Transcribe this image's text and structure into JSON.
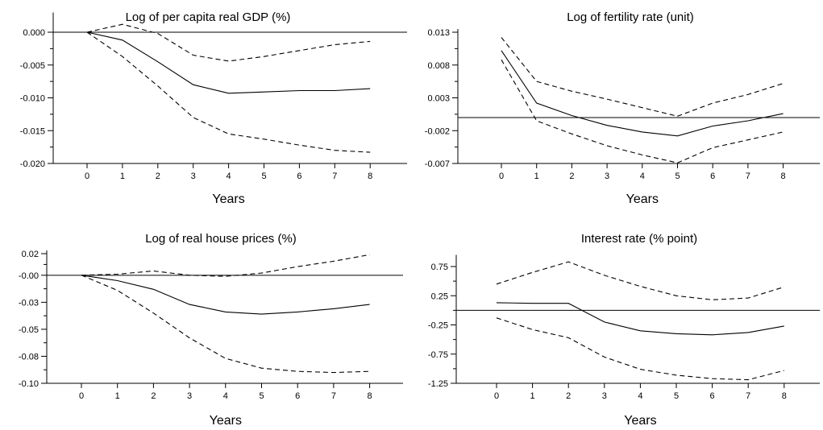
{
  "chart_data": [
    {
      "type": "line",
      "title": "Log of per capita real GDP (%)",
      "xlabel": "Years",
      "ylabel": "",
      "x": [
        0,
        1,
        2,
        3,
        4,
        5,
        6,
        7,
        8
      ],
      "ylim": [
        -0.02,
        0.003
      ],
      "yticks": [
        "0.000",
        "-0.005",
        "-0.010",
        "-0.015",
        "-0.020"
      ],
      "ytick_values": [
        0.0,
        -0.005,
        -0.01,
        -0.015,
        -0.02
      ],
      "zero_line": 0,
      "series": [
        {
          "style": "solid",
          "values": [
            0.0,
            -0.0012,
            -0.0045,
            -0.008,
            -0.0093,
            -0.0091,
            -0.0089,
            -0.0089,
            -0.0086
          ]
        },
        {
          "style": "dashed",
          "values": [
            0.0,
            0.0012,
            -0.0002,
            -0.0035,
            -0.0044,
            -0.0037,
            -0.0028,
            -0.0019,
            -0.0014
          ]
        },
        {
          "style": "dashed",
          "values": [
            0.0,
            -0.0037,
            -0.0082,
            -0.013,
            -0.0155,
            -0.0163,
            -0.0172,
            -0.018,
            -0.0183
          ]
        }
      ]
    },
    {
      "type": "line",
      "title": "Log of fertility rate (unit)",
      "xlabel": "Years",
      "ylabel": "",
      "x": [
        0,
        1,
        2,
        3,
        4,
        5,
        6,
        7,
        8
      ],
      "ylim": [
        -0.007,
        0.013
      ],
      "yticks": [
        "0.013",
        "0.008",
        "0.003",
        "-0.002",
        "-0.007"
      ],
      "ytick_values": [
        0.013,
        0.008,
        0.003,
        -0.002,
        -0.007
      ],
      "zero_line": 0,
      "series": [
        {
          "style": "solid",
          "values": [
            0.0102,
            0.0022,
            0.0003,
            -0.0012,
            -0.0022,
            -0.0028,
            -0.0013,
            -0.0005,
            0.0006
          ]
        },
        {
          "style": "dashed",
          "values": [
            0.0122,
            0.0055,
            0.004,
            0.0028,
            0.0015,
            0.0002,
            0.0022,
            0.0035,
            0.0052
          ]
        },
        {
          "style": "dashed",
          "values": [
            0.0088,
            -0.0005,
            -0.0025,
            -0.0043,
            -0.0057,
            -0.0069,
            -0.0046,
            -0.0034,
            -0.0022
          ]
        }
      ]
    },
    {
      "type": "line",
      "title": "Log of real house prices (%)",
      "xlabel": "Years",
      "ylabel": "",
      "x": [
        0,
        1,
        2,
        3,
        4,
        5,
        6,
        7,
        8
      ],
      "ylim": [
        -0.1,
        0.02
      ],
      "yticks": [
        "0.02",
        "-0.00",
        "-0.03",
        "-0.05",
        "-0.08",
        "-0.10"
      ],
      "ytick_values": [
        0.02,
        0.0,
        -0.025,
        -0.05,
        -0.075,
        -0.1
      ],
      "zero_line": 0,
      "series": [
        {
          "style": "solid",
          "values": [
            0.0,
            -0.005,
            -0.013,
            -0.027,
            -0.034,
            -0.036,
            -0.034,
            -0.031,
            -0.027
          ]
        },
        {
          "style": "dashed",
          "values": [
            0.0,
            0.001,
            0.004,
            0.0,
            -0.001,
            0.002,
            0.008,
            0.013,
            0.019
          ]
        },
        {
          "style": "dashed",
          "values": [
            0.0,
            -0.014,
            -0.035,
            -0.058,
            -0.077,
            -0.086,
            -0.089,
            -0.09,
            -0.089
          ]
        }
      ]
    },
    {
      "type": "line",
      "title": "Interest rate (% point)",
      "xlabel": "Years",
      "ylabel": "",
      "x": [
        0,
        1,
        2,
        3,
        4,
        5,
        6,
        7,
        8
      ],
      "ylim": [
        -1.25,
        0.95
      ],
      "yticks": [
        "0.75",
        "0.25",
        "-0.25",
        "-0.75",
        "-1.25"
      ],
      "ytick_values": [
        0.75,
        0.25,
        -0.25,
        -0.75,
        -1.25
      ],
      "zero_line": 0,
      "series": [
        {
          "style": "solid",
          "values": [
            0.13,
            0.12,
            0.12,
            -0.2,
            -0.35,
            -0.4,
            -0.42,
            -0.38,
            -0.27
          ]
        },
        {
          "style": "dashed",
          "values": [
            0.45,
            0.65,
            0.83,
            0.6,
            0.41,
            0.25,
            0.18,
            0.21,
            0.4
          ]
        },
        {
          "style": "dashed",
          "values": [
            -0.13,
            -0.33,
            -0.47,
            -0.8,
            -1.01,
            -1.11,
            -1.17,
            -1.19,
            -1.03
          ]
        }
      ]
    }
  ]
}
